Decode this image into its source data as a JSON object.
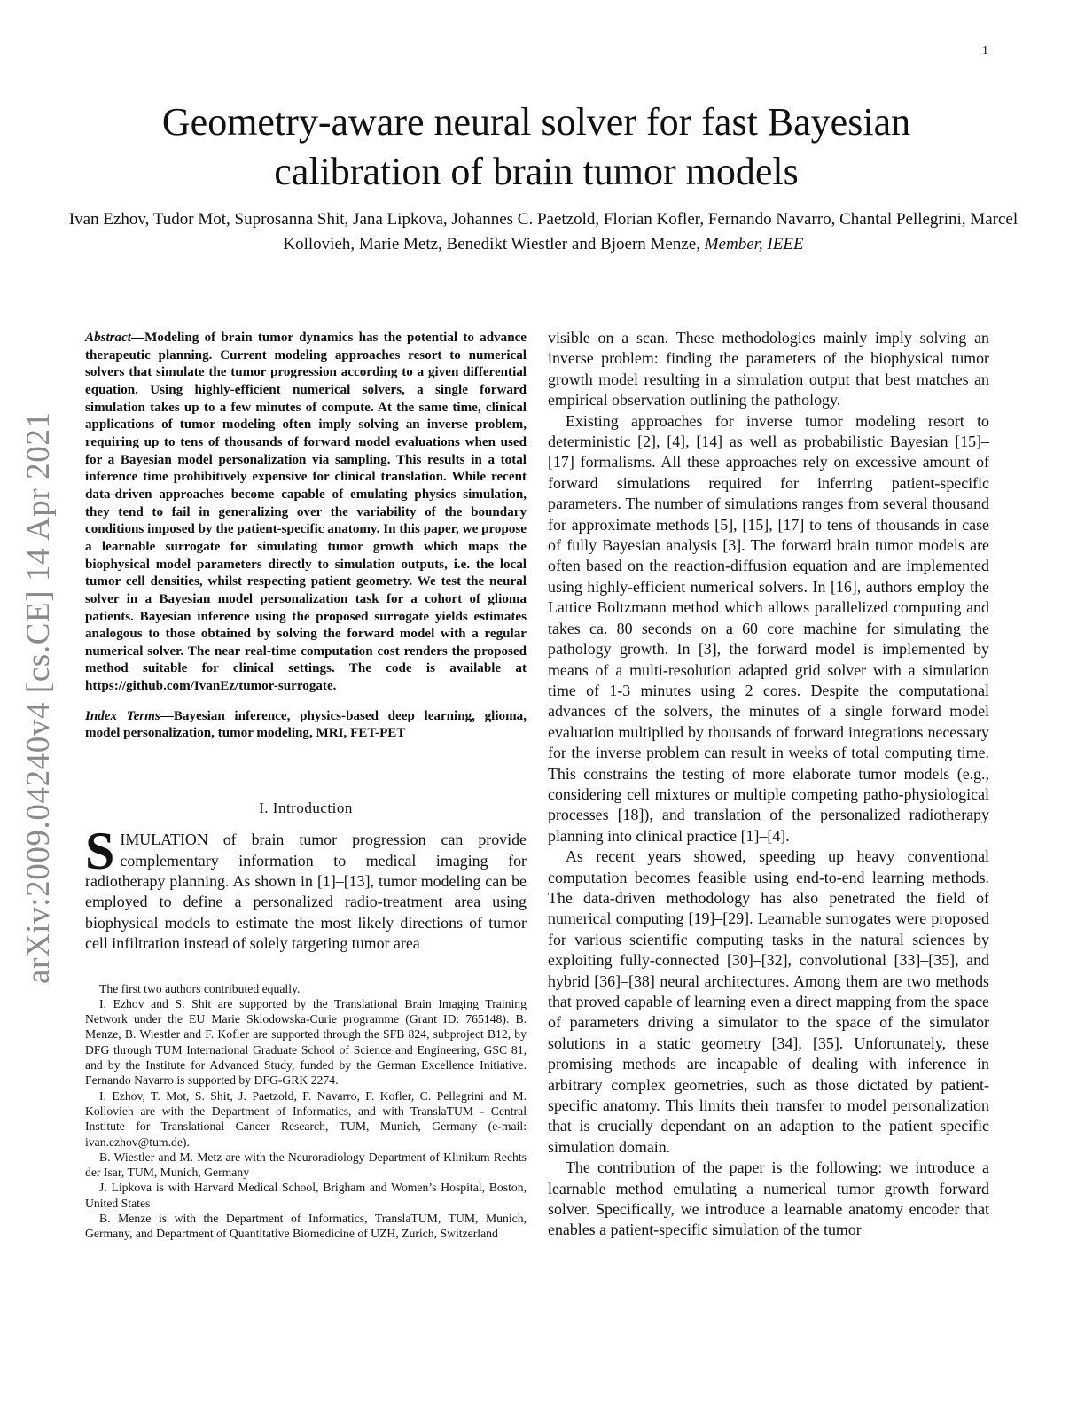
{
  "page_number": "1",
  "arxiv_stamp": "arXiv:2009.04240v4  [cs.CE]  14 Apr 2021",
  "title_line1": "Geometry-aware neural solver for fast Bayesian",
  "title_line2": "calibration of brain tumor models",
  "authors_text": "Ivan Ezhov, Tudor Mot, Suprosanna Shit, Jana Lipkova, Johannes C. Paetzold, Florian Kofler, Fernando Navarro, Chantal Pellegrini, Marcel Kollovieh, Marie Metz, Benedikt Wiestler and Bjoern Menze, ",
  "authors_membership": "Member, IEEE",
  "abstract": {
    "lead": "Abstract",
    "text": "—Modeling of brain tumor dynamics has the potential to advance therapeutic planning. Current modeling approaches resort to numerical solvers that simulate the tumor progression according to a given differential equation. Using highly-efficient numerical solvers, a single forward simulation takes up to a few minutes of compute. At the same time, clinical applications of tumor modeling often imply solving an inverse problem, requiring up to tens of thousands of forward model evaluations when used for a Bayesian model personalization via sampling. This results in a total inference time prohibitively expensive for clinical translation. While recent data-driven approaches become capable of emulating physics simulation, they tend to fail in generalizing over the variability of the boundary conditions imposed by the patient-specific anatomy. In this paper, we propose a learnable surrogate for simulating tumor growth which maps the biophysical model parameters directly to simulation outputs, i.e. the local tumor cell densities, whilst respecting patient geometry. We test the neural solver in a Bayesian model personalization task for a cohort of glioma patients. Bayesian inference using the proposed surrogate yields estimates analogous to those obtained by solving the forward model with a regular numerical solver. The near real-time computation cost renders the proposed method suitable for clinical settings. The code is available at https://github.com/IvanEz/tumor-surrogate."
  },
  "index_terms": {
    "lead": "Index Terms",
    "text": "—Bayesian inference, physics-based deep learning, glioma, model personalization, tumor modeling, MRI, FET-PET"
  },
  "section_heading": "I. Introduction",
  "intro": {
    "dropcap": "S",
    "text": "IMULATION of brain tumor progression can provide complementary information to medical imaging for radiotherapy planning. As shown in [1]–[13], tumor modeling can be employed to define a personalized radio-treatment area using biophysical models to estimate the most likely directions of tumor cell infiltration instead of solely targeting tumor area"
  },
  "footnotes": [
    "The first two authors contributed equally.",
    "I. Ezhov and S. Shit are supported by the Translational Brain Imaging Training Network under the EU Marie Sklodowska-Curie programme (Grant ID: 765148). B. Menze, B. Wiestler and F. Kofler are supported through the SFB 824, subproject B12, by DFG through TUM International Graduate School of Science and Engineering, GSC 81, and by the Institute for Advanced Study, funded by the German Excellence Initiative. Fernando Navarro is supported by DFG-GRK 2274.",
    "I. Ezhov, T. Mot, S. Shit, J. Paetzold, F. Navarro, F. Kofler, C. Pellegrini and M. Kollovieh are with the Department of Informatics, and with TranslaTUM - Central Institute for Translational Cancer Research, TUM, Munich, Germany (e-mail: ivan.ezhov@tum.de).",
    "B. Wiestler and M. Metz are with the Neuroradiology Department of Klinikum Rechts der Isar, TUM, Munich, Germany",
    "J. Lipkova is with Harvard Medical School, Brigham and Women’s Hospital, Boston, United States",
    "B. Menze is with the Department of Informatics, TranslaTUM, TUM, Munich, Germany, and Department of Quantitative Biomedicine of UZH, Zurich, Switzerland"
  ],
  "right_column": [
    "visible on a scan. These methodologies mainly imply solving an inverse problem: finding the parameters of the biophysical tumor growth model resulting in a simulation output that best matches an empirical observation outlining the pathology.",
    "Existing approaches for inverse tumor modeling resort to deterministic [2], [4], [14] as well as probabilistic Bayesian [15]–[17] formalisms. All these approaches rely on excessive amount of forward simulations required for inferring patient-specific parameters. The number of simulations ranges from several thousand for approximate methods [5], [15], [17] to tens of thousands in case of fully Bayesian analysis [3]. The forward brain tumor models are often based on the reaction-diffusion equation and are implemented using highly-efficient numerical solvers. In [16], authors employ the Lattice Boltzmann method which allows parallelized computing and takes ca. 80 seconds on a 60 core machine for simulating the pathology growth. In [3], the forward model is implemented by means of a multi-resolution adapted grid solver with a simulation time of 1-3 minutes using 2 cores. Despite the computational advances of the solvers, the minutes of a single forward model evaluation multiplied by thousands of forward integrations necessary for the inverse problem can result in weeks of total computing time. This constrains the testing of more elaborate tumor models (e.g., considering cell mixtures or multiple competing patho-physiological processes [18]), and translation of the personalized radiotherapy planning into clinical practice [1]–[4].",
    "As recent years showed, speeding up heavy conventional computation becomes feasible using end-to-end learning methods. The data-driven methodology has also penetrated the field of numerical computing [19]–[29]. Learnable surrogates were proposed for various scientific computing tasks in the natural sciences by exploiting fully-connected [30]–[32], convolutional [33]–[35], and hybrid [36]–[38] neural architectures. Among them are two methods that proved capable of learning even a direct mapping from the space of parameters driving a simulator to the space of the simulator solutions in a static geometry [34], [35]. Unfortunately, these promising methods are incapable of dealing with inference in arbitrary complex geometries, such as those dictated by patient-specific anatomy. This limits their transfer to model personalization that is crucially dependant on an adaption to the patient specific simulation domain.",
    "The contribution of the paper is the following: we introduce a learnable method emulating a numerical tumor growth forward solver. Specifically, we introduce a learnable anatomy encoder that enables a patient-specific simulation of the tumor"
  ]
}
